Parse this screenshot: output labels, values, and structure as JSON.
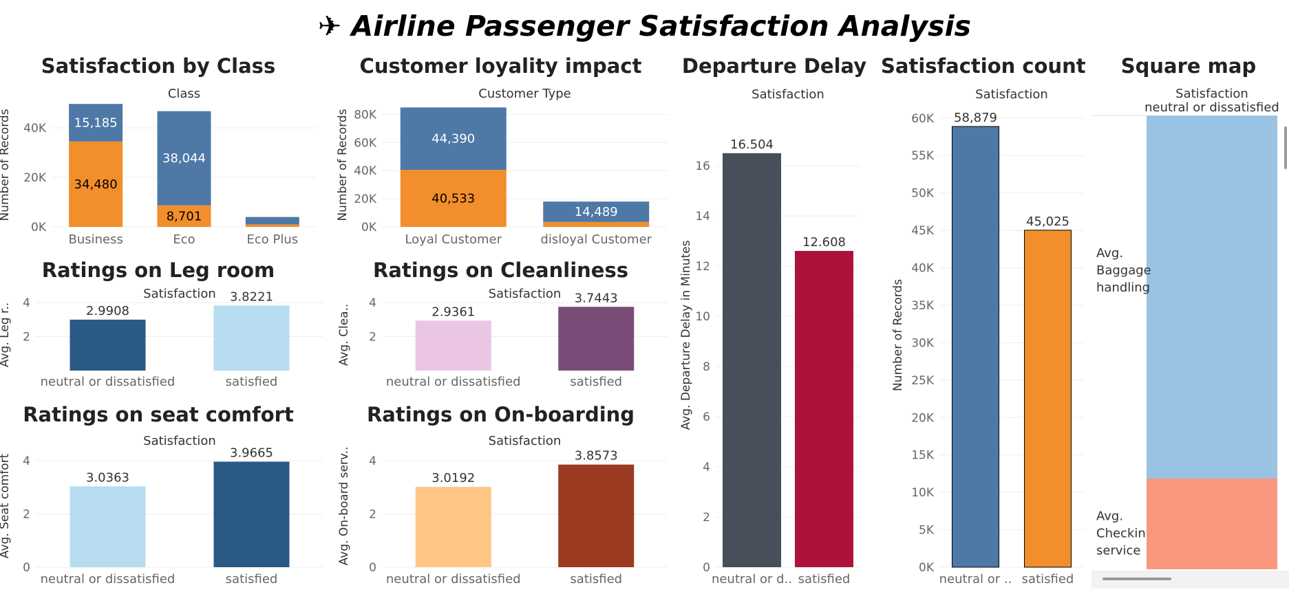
{
  "dashboard": {
    "title": "✈ Airline Passenger Satisfaction Analysis"
  },
  "colors": {
    "orange": "#F28E2B",
    "blue": "#4E79A7",
    "darkblue": "#2B5986",
    "lightblue": "#B7DCF0",
    "pink": "#EBC6E4",
    "purple": "#7A4D78",
    "peach": "#FFC685",
    "rust": "#9C3A21",
    "slate": "#484F5A",
    "crimson": "#AD1238",
    "squareblue": "#9AC3E3",
    "squaresalmon": "#F9977F"
  },
  "chart_data": [
    {
      "id": "class",
      "type": "bar",
      "title": "Satisfaction by Class",
      "column_header": "Class",
      "ylabel": "Number of Records",
      "categories": [
        "Business",
        "Eco",
        "Eco Plus"
      ],
      "ylim": [
        0,
        50000
      ],
      "yticks": [
        0,
        20000,
        40000
      ],
      "ytick_labels": [
        "0K",
        "20K",
        "40K"
      ],
      "series": [
        {
          "values": [
            34480,
            8701,
            1000
          ],
          "labels": [
            "34,480",
            "8,701",
            ""
          ],
          "color": "#F28E2B"
        },
        {
          "values": [
            15185,
            38044,
            3000
          ],
          "labels": [
            "15,185",
            "38,044",
            ""
          ],
          "color": "#4E79A7"
        }
      ]
    },
    {
      "id": "loyalty",
      "type": "bar",
      "title": "Customer loyality impact",
      "column_header": "Customer Type",
      "ylabel": "Number of Records",
      "categories": [
        "Loyal Customer",
        "disloyal Customer"
      ],
      "ylim": [
        0,
        88000
      ],
      "yticks": [
        0,
        20000,
        40000,
        60000,
        80000
      ],
      "ytick_labels": [
        "0K",
        "20K",
        "40K",
        "60K",
        "80K"
      ],
      "series": [
        {
          "values": [
            40533,
            3500
          ],
          "labels": [
            "40,533",
            ""
          ],
          "color": "#F28E2B"
        },
        {
          "values": [
            44390,
            14489
          ],
          "labels": [
            "44,390",
            "14,489"
          ],
          "color": "#4E79A7"
        }
      ]
    },
    {
      "id": "delay",
      "type": "bar",
      "title": "Departure Delay",
      "column_header": "Satisfaction",
      "ylabel": "Avg. Departure Delay in Minutes",
      "categories": [
        "neutral or d..",
        "satisfied"
      ],
      "values": [
        16.504,
        12.608
      ],
      "labels": [
        "16.504",
        "12.608"
      ],
      "colors": [
        "#484F5A",
        "#AD1238"
      ],
      "ylim": [
        0,
        18.5
      ],
      "yticks": [
        0,
        2,
        4,
        6,
        8,
        10,
        12,
        14,
        16
      ],
      "ytick_labels": [
        "0",
        "2",
        "4",
        "6",
        "8",
        "10",
        "12",
        "14",
        "16"
      ]
    },
    {
      "id": "count",
      "type": "bar",
      "title": "Satisfaction count",
      "column_header": "Satisfaction",
      "ylabel": "Number of Records",
      "categories": [
        "neutral or ..",
        "satisfied"
      ],
      "values": [
        58879,
        45025
      ],
      "labels": [
        "58,879",
        "45,025"
      ],
      "colors": [
        "#4E79A7",
        "#F28E2B"
      ],
      "ylim": [
        0,
        62000
      ],
      "yticks": [
        0,
        5000,
        10000,
        15000,
        20000,
        25000,
        30000,
        35000,
        40000,
        45000,
        50000,
        55000,
        60000
      ],
      "ytick_labels": [
        "0K",
        "5K",
        "10K",
        "15K",
        "20K",
        "25K",
        "30K",
        "35K",
        "40K",
        "45K",
        "50K",
        "55K",
        "60K"
      ]
    },
    {
      "id": "legroom",
      "type": "bar",
      "title": "Ratings on Leg room",
      "column_header": "Satisfaction",
      "ylabel": "Avg. Leg r..",
      "categories": [
        "neutral or dissatisfied",
        "satisfied"
      ],
      "values": [
        2.9908,
        3.8221
      ],
      "labels": [
        "2.9908",
        "3.8221"
      ],
      "colors": [
        "#2B5986",
        "#B7DCF0"
      ],
      "ylim": [
        0,
        4.2
      ],
      "yticks": [
        2,
        4
      ],
      "ytick_labels": [
        "2",
        "4"
      ]
    },
    {
      "id": "cleanliness",
      "type": "bar",
      "title": "Ratings on Cleanliness",
      "column_header": "Satisfaction",
      "ylabel": "Avg. Clea..",
      "categories": [
        "neutral or dissatisfied",
        "satisfied"
      ],
      "values": [
        2.9361,
        3.7443
      ],
      "labels": [
        "2.9361",
        "3.7443"
      ],
      "colors": [
        "#EBC6E4",
        "#7A4D78"
      ],
      "ylim": [
        0,
        4.2
      ],
      "yticks": [
        2,
        4
      ],
      "ytick_labels": [
        "2",
        "4"
      ]
    },
    {
      "id": "seat",
      "type": "bar",
      "title": "Ratings on seat comfort",
      "column_header": "Satisfaction",
      "ylabel": "Avg. Seat comfort",
      "categories": [
        "neutral or dissatisfied",
        "satisfied"
      ],
      "values": [
        3.0363,
        3.9665
      ],
      "labels": [
        "3.0363",
        "3.9665"
      ],
      "colors": [
        "#B7DCF0",
        "#2B5986"
      ],
      "ylim": [
        0,
        4.6
      ],
      "yticks": [
        0,
        2,
        4
      ],
      "ytick_labels": [
        "0",
        "2",
        "4"
      ]
    },
    {
      "id": "onboarding",
      "type": "bar",
      "title": "Ratings on On-boarding",
      "column_header": "Satisfaction",
      "ylabel": "Avg. On-board serv..",
      "categories": [
        "neutral or dissatisfied",
        "satisfied"
      ],
      "values": [
        3.0192,
        3.8573
      ],
      "labels": [
        "3.0192",
        "3.8573"
      ],
      "colors": [
        "#FFC685",
        "#9C3A21"
      ],
      "ylim": [
        0,
        4.6
      ],
      "yticks": [
        0,
        2,
        4
      ],
      "ytick_labels": [
        "0",
        "2",
        "4"
      ]
    },
    {
      "id": "square",
      "type": "heatmap",
      "title": "Square map",
      "column_header": "Satisfaction",
      "column_value": "neutral or dissatisfied",
      "rows": [
        {
          "label_lines": [
            "Avg.",
            "Baggage",
            "handling"
          ],
          "share": 0.8,
          "color": "#9AC3E3"
        },
        {
          "label_lines": [
            "Avg.",
            "Checkin",
            "service"
          ],
          "share": 0.2,
          "color": "#F9977F"
        }
      ]
    }
  ]
}
